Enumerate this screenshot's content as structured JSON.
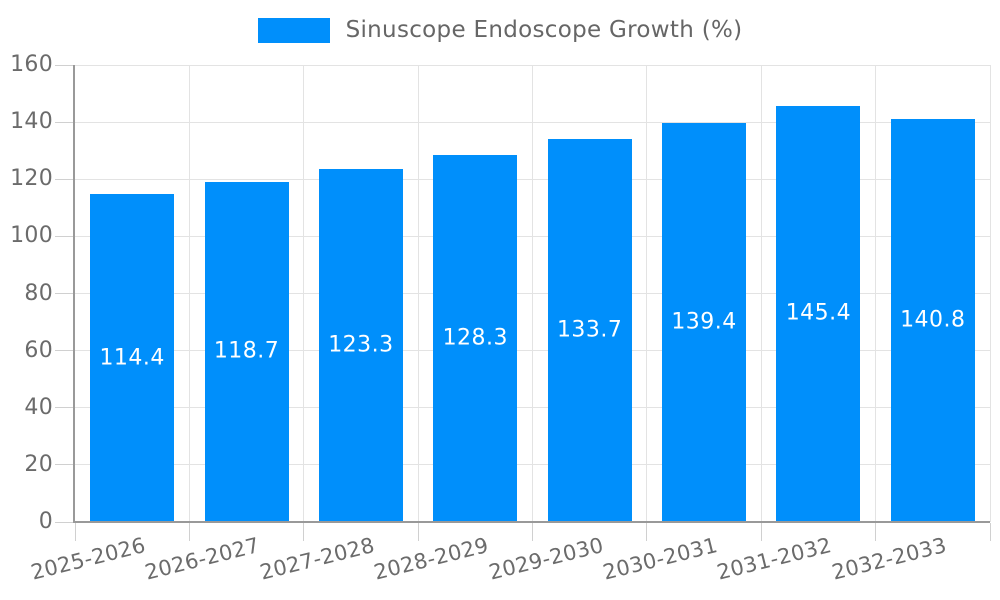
{
  "legend": {
    "label": "Sinuscope Endoscope Growth (%)"
  },
  "chart_data": {
    "type": "bar",
    "title": "",
    "legend_position": "top",
    "grid": true,
    "categories": [
      "2025-2026",
      "2026-2027",
      "2027-2028",
      "2028-2029",
      "2029-2030",
      "2030-2031",
      "2031-2032",
      "2032-2033"
    ],
    "series": [
      {
        "name": "Sinuscope Endoscope Growth (%)",
        "values": [
          114.4,
          118.7,
          123.3,
          128.3,
          133.7,
          139.4,
          145.4,
          140.8
        ]
      }
    ],
    "value_labels": [
      "114.4",
      "118.7",
      "123.3",
      "128.3",
      "133.7",
      "139.4",
      "145.4",
      "140.8"
    ],
    "xlabel": "",
    "ylabel": "",
    "ylim": [
      0,
      160
    ],
    "yticks": [
      0,
      20,
      40,
      60,
      80,
      100,
      120,
      140,
      160
    ],
    "bar_color": "#008FFB",
    "value_label_color": "#FFFFFF",
    "axis_text_color": "#6b6b6b",
    "legend_text_color": "#666666",
    "gridline_color": "#e3e3e3",
    "tick_color": "#d0d0d0",
    "axis_line_color": "#999999"
  }
}
